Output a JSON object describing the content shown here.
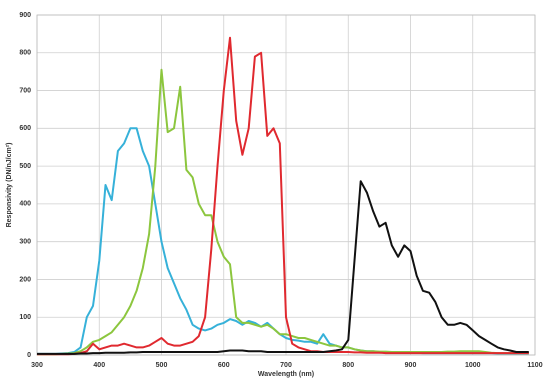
{
  "chart_data": {
    "type": "line",
    "x_label": "Wavelength (nm)",
    "y_label": "Responsivity (DN/nJ/cm²)",
    "x": [
      300,
      310,
      320,
      330,
      340,
      350,
      360,
      370,
      380,
      390,
      400,
      410,
      420,
      430,
      440,
      450,
      460,
      470,
      480,
      490,
      500,
      510,
      520,
      530,
      540,
      550,
      560,
      570,
      580,
      590,
      600,
      610,
      620,
      630,
      640,
      650,
      660,
      670,
      680,
      690,
      700,
      710,
      720,
      730,
      740,
      750,
      760,
      770,
      780,
      790,
      800,
      810,
      820,
      830,
      840,
      850,
      860,
      870,
      880,
      890,
      900,
      910,
      920,
      930,
      940,
      950,
      960,
      970,
      980,
      990,
      1000,
      1010,
      1020,
      1030,
      1040,
      1050,
      1060,
      1070,
      1080,
      1090
    ],
    "series": [
      {
        "color": "#36b1d9",
        "values": [
          3,
          3,
          3,
          3,
          4,
          5,
          8,
          20,
          100,
          130,
          250,
          450,
          410,
          540,
          560,
          600,
          600,
          540,
          500,
          400,
          300,
          230,
          190,
          150,
          120,
          80,
          70,
          65,
          70,
          80,
          85,
          95,
          90,
          80,
          90,
          85,
          75,
          85,
          70,
          55,
          45,
          40,
          38,
          35,
          35,
          30,
          55,
          30,
          25,
          20,
          20,
          15,
          12,
          10,
          10,
          8,
          8,
          7,
          7,
          6,
          6,
          6,
          5,
          5,
          5,
          5,
          5,
          5,
          5,
          5,
          5,
          5,
          5,
          5,
          4,
          4,
          4,
          4,
          4,
          4
        ]
      },
      {
        "color": "#8cc63e",
        "values": [
          2,
          2,
          2,
          2,
          3,
          4,
          5,
          10,
          20,
          35,
          40,
          50,
          60,
          80,
          100,
          130,
          170,
          230,
          320,
          500,
          755,
          590,
          600,
          710,
          490,
          470,
          400,
          370,
          370,
          300,
          260,
          240,
          100,
          85,
          85,
          80,
          75,
          80,
          70,
          55,
          55,
          50,
          45,
          45,
          40,
          35,
          30,
          25,
          25,
          20,
          20,
          15,
          12,
          10,
          10,
          9,
          9,
          8,
          8,
          8,
          8,
          8,
          8,
          8,
          8,
          8,
          9,
          9,
          10,
          10,
          10,
          10,
          8,
          6,
          5,
          5,
          5,
          5,
          5,
          5
        ]
      },
      {
        "color": "#e0292f",
        "values": [
          2,
          2,
          2,
          2,
          2,
          2,
          3,
          5,
          10,
          30,
          15,
          20,
          25,
          25,
          30,
          25,
          20,
          20,
          25,
          35,
          45,
          30,
          25,
          25,
          30,
          35,
          50,
          100,
          280,
          500,
          700,
          840,
          620,
          530,
          600,
          790,
          800,
          580,
          600,
          560,
          100,
          30,
          20,
          15,
          10,
          10,
          8,
          8,
          8,
          8,
          8,
          7,
          7,
          6,
          6,
          6,
          5,
          5,
          5,
          5,
          5,
          5,
          5,
          5,
          5,
          5,
          5,
          5,
          5,
          5,
          5,
          5,
          5,
          5,
          5,
          5,
          5,
          5,
          5,
          5
        ]
      },
      {
        "color": "#111111",
        "values": [
          3,
          3,
          3,
          3,
          3,
          3,
          3,
          4,
          4,
          5,
          5,
          6,
          6,
          6,
          6,
          7,
          7,
          8,
          8,
          8,
          8,
          8,
          8,
          8,
          8,
          8,
          8,
          8,
          8,
          8,
          10,
          12,
          12,
          12,
          10,
          10,
          10,
          8,
          8,
          8,
          8,
          8,
          8,
          8,
          8,
          8,
          8,
          10,
          12,
          15,
          40,
          250,
          460,
          430,
          380,
          340,
          350,
          290,
          260,
          290,
          275,
          210,
          170,
          165,
          140,
          100,
          80,
          80,
          85,
          80,
          65,
          50,
          40,
          30,
          20,
          15,
          12,
          8,
          8,
          8
        ]
      }
    ],
    "xlim": [
      300,
      1100
    ],
    "xticks": [
      300,
      400,
      500,
      600,
      700,
      800,
      900,
      1000,
      1100
    ],
    "ylim": [
      0,
      900
    ],
    "yticks": [
      0,
      100,
      200,
      300,
      400,
      500,
      600,
      700,
      800,
      900
    ],
    "grid": true
  }
}
